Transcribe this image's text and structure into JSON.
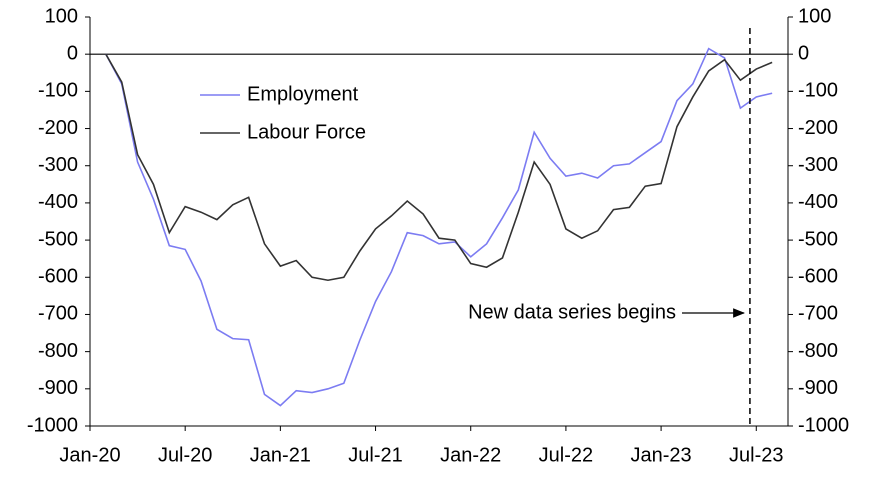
{
  "chart_data": {
    "type": "line",
    "x": [
      1,
      2,
      3,
      4,
      5,
      6,
      7,
      8,
      9,
      10,
      11,
      12,
      13,
      14,
      15,
      16,
      17,
      18,
      19,
      20,
      21,
      22,
      23,
      24,
      25,
      26,
      27,
      28,
      29,
      30,
      31,
      32,
      33,
      34,
      35,
      36,
      37,
      38,
      39,
      40,
      41,
      42,
      43
    ],
    "xlim": [
      0,
      44
    ],
    "xticks": [
      {
        "value": 0,
        "label": "Jan-20"
      },
      {
        "value": 6,
        "label": "Jul-20"
      },
      {
        "value": 12,
        "label": "Jan-21"
      },
      {
        "value": 18,
        "label": "Jul-21"
      },
      {
        "value": 24,
        "label": "Jan-22"
      },
      {
        "value": 30,
        "label": "Jul-22"
      },
      {
        "value": 36,
        "label": "Jan-23"
      },
      {
        "value": 42,
        "label": "Jul-23"
      }
    ],
    "ylim": [
      -1000,
      100
    ],
    "yticks": [
      100,
      0,
      -100,
      -200,
      -300,
      -400,
      -500,
      -600,
      -700,
      -800,
      -900,
      -1000
    ],
    "y2lim": [
      -1000,
      100
    ],
    "y2ticks": [
      100,
      0,
      -100,
      -200,
      -300,
      -400,
      -500,
      -600,
      -700,
      -800,
      -900,
      -1000
    ],
    "series": [
      {
        "name": "Employment",
        "color": "#7c7cf2",
        "values": [
          0,
          -80,
          -290,
          -390,
          -515,
          -525,
          -610,
          -740,
          -765,
          -768,
          -915,
          -945,
          -905,
          -910,
          -900,
          -885,
          -770,
          -665,
          -585,
          -480,
          -488,
          -510,
          -505,
          -545,
          -510,
          -440,
          -365,
          -210,
          -280,
          -328,
          -320,
          -333,
          -300,
          -295,
          -265,
          -235,
          -125,
          -80,
          15,
          -10,
          -145,
          -115,
          -105
        ]
      },
      {
        "name": "Labour Force",
        "color": "#333333",
        "values": [
          0,
          -75,
          -270,
          -350,
          -480,
          -410,
          -425,
          -445,
          -405,
          -385,
          -510,
          -570,
          -555,
          -600,
          -608,
          -600,
          -530,
          -470,
          -435,
          -395,
          -430,
          -495,
          -500,
          -563,
          -573,
          -548,
          -425,
          -290,
          -350,
          -470,
          -495,
          -475,
          -418,
          -412,
          -355,
          -348,
          -195,
          -115,
          -45,
          -15,
          -70,
          -40,
          -22
        ]
      }
    ],
    "annotation": {
      "text": "New data series begins",
      "x": 41.6
    }
  }
}
